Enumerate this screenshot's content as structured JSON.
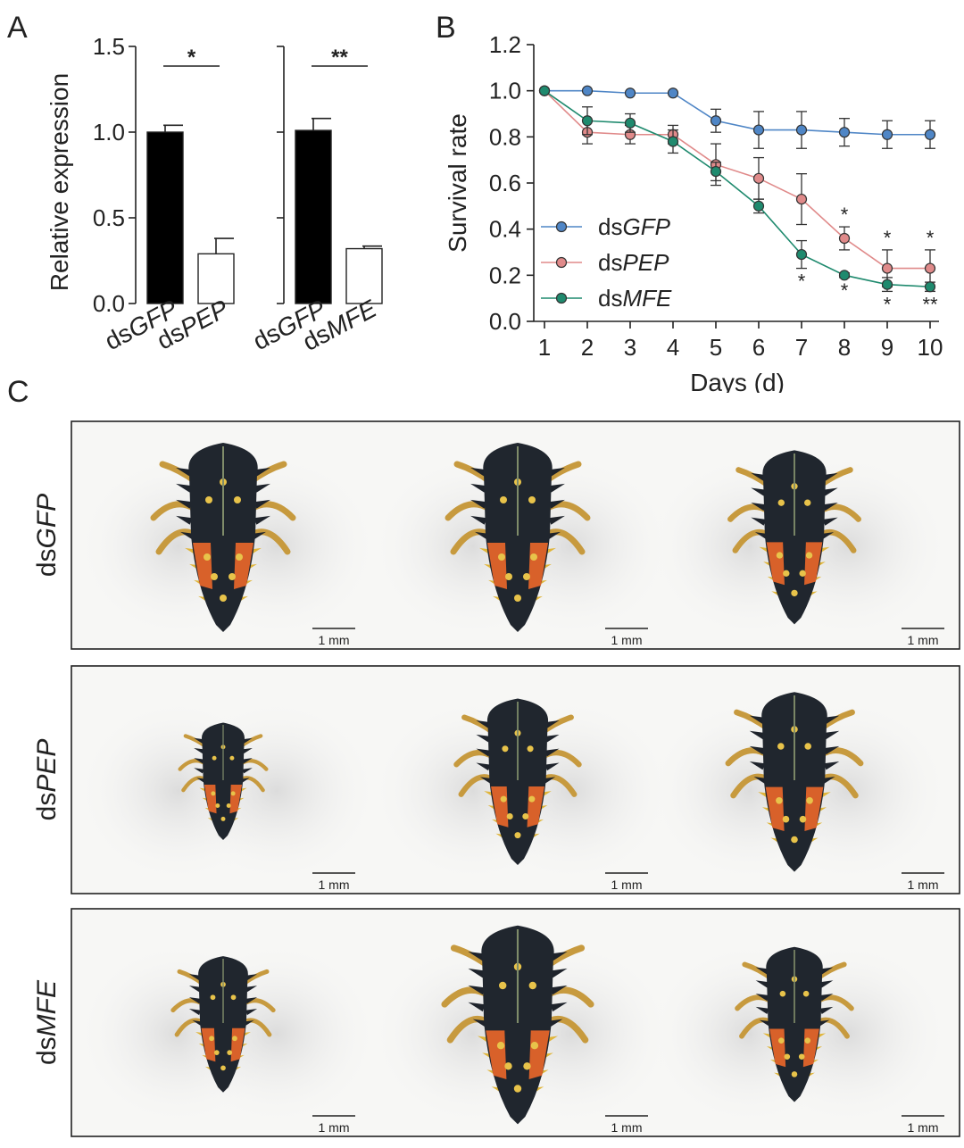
{
  "panels": {
    "a": "A",
    "b": "B",
    "c": "C"
  },
  "chart_data": [
    {
      "type": "bar",
      "panel": "A",
      "ylabel": "Relative expression",
      "ylim": [
        0,
        1.5
      ],
      "yticks": [
        "0.0",
        "0.5",
        "1.0",
        "1.5"
      ],
      "groups": [
        {
          "categories": [
            "dsGFP",
            "dsPEP"
          ],
          "category_parts": [
            [
              "ds",
              "GFP"
            ],
            [
              "ds",
              "PEP"
            ]
          ],
          "values": [
            1.0,
            0.29
          ],
          "errors": [
            0.04,
            0.09
          ],
          "fills": [
            "#000000",
            "#ffffff"
          ],
          "significance": "*"
        },
        {
          "categories": [
            "dsGFP",
            "dsMFE"
          ],
          "category_parts": [
            [
              "ds",
              "GFP"
            ],
            [
              "ds",
              "MFE"
            ]
          ],
          "values": [
            1.01,
            0.32
          ],
          "errors": [
            0.07,
            0.015
          ],
          "fills": [
            "#000000",
            "#ffffff"
          ],
          "significance": "**"
        }
      ]
    },
    {
      "type": "line",
      "panel": "B",
      "xlabel": "Days (d)",
      "ylabel": "Survival rate",
      "x": [
        1,
        2,
        3,
        4,
        5,
        6,
        7,
        8,
        9,
        10
      ],
      "xlim": [
        1,
        10
      ],
      "ylim": [
        0,
        1.2
      ],
      "yticks": [
        "0.0",
        "0.2",
        "0.4",
        "0.6",
        "0.8",
        "1.0",
        "1.2"
      ],
      "series": [
        {
          "name": "dsGFP",
          "prefix": "ds",
          "gene": "GFP",
          "color": "#4f86c6",
          "values": [
            1.0,
            1.0,
            0.99,
            0.99,
            0.87,
            0.83,
            0.83,
            0.82,
            0.81,
            0.81
          ],
          "errors": [
            0,
            0,
            0,
            0,
            0.05,
            0.08,
            0.08,
            0.06,
            0.06,
            0.06
          ]
        },
        {
          "name": "dsPEP",
          "prefix": "ds",
          "gene": "PEP",
          "color": "#e08a8a",
          "values": [
            1.0,
            0.82,
            0.81,
            0.81,
            0.68,
            0.62,
            0.53,
            0.36,
            0.23,
            0.23
          ],
          "errors": [
            0,
            0.05,
            0.04,
            0.04,
            0.09,
            0.09,
            0.11,
            0.05,
            0.08,
            0.08
          ]
        },
        {
          "name": "dsMFE",
          "prefix": "ds",
          "gene": "MFE",
          "color": "#1f8a6e",
          "values": [
            1.0,
            0.87,
            0.86,
            0.78,
            0.65,
            0.5,
            0.29,
            0.2,
            0.16,
            0.15
          ],
          "errors": [
            0,
            0.06,
            0.04,
            0.05,
            0.04,
            0.03,
            0.06,
            0.01,
            0.03,
            0.02
          ]
        }
      ],
      "annotations": [
        {
          "series": "dsPEP",
          "day": 8,
          "text": "*",
          "position": "above"
        },
        {
          "series": "dsPEP",
          "day": 9,
          "text": "*",
          "position": "above"
        },
        {
          "series": "dsPEP",
          "day": 10,
          "text": "*",
          "position": "above"
        },
        {
          "series": "dsMFE",
          "day": 7,
          "text": "*",
          "position": "below"
        },
        {
          "series": "dsMFE",
          "day": 8,
          "text": "*",
          "position": "below"
        },
        {
          "series": "dsMFE",
          "day": 9,
          "text": "*",
          "position": "below"
        },
        {
          "series": "dsMFE",
          "day": 10,
          "text": "**",
          "position": "below"
        }
      ],
      "legend": "bottom-left"
    }
  ],
  "photos": {
    "rows": [
      {
        "prefix": "ds",
        "gene": "GFP",
        "treatment": "dsGFP",
        "scale_bar": "1 mm"
      },
      {
        "prefix": "ds",
        "gene": "PEP",
        "treatment": "dsPEP",
        "scale_bar": "1 mm"
      },
      {
        "prefix": "ds",
        "gene": "MFE",
        "treatment": "dsMFE",
        "scale_bar": "1 mm"
      }
    ]
  }
}
